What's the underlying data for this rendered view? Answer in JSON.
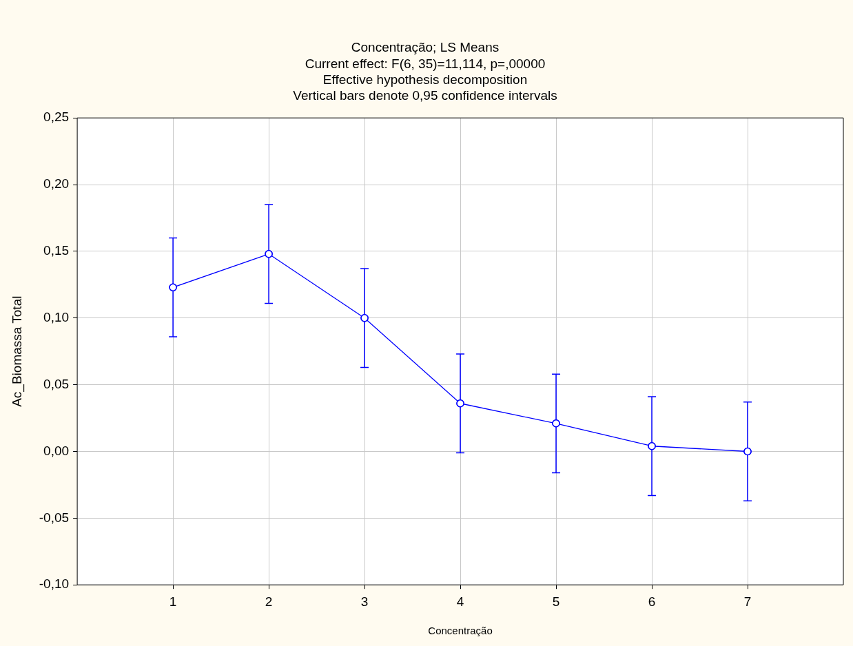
{
  "chart_data": {
    "type": "line",
    "title": "Concentração; LS Means",
    "subtitle": "Current effect: F(6, 35)=11,114, p=,00000\nEffective hypothesis decomposition\nVertical bars denote 0,95 confidence intervals",
    "xlabel": "Concentração",
    "ylabel": "Ac_Biomassa Total",
    "categories": [
      "1",
      "2",
      "3",
      "4",
      "5",
      "6",
      "7"
    ],
    "series": [
      {
        "color": "#0000ff",
        "values": [
          0.123,
          0.148,
          0.1,
          0.036,
          0.021,
          0.004,
          0.0
        ],
        "errors": [
          0.037,
          0.037,
          0.037,
          0.037,
          0.037,
          0.037,
          0.037
        ]
      }
    ],
    "ylim": [
      -0.1,
      0.25
    ],
    "yticks": [
      {
        "value": -0.1,
        "label": "-0,10"
      },
      {
        "value": -0.05,
        "label": "-0,05"
      },
      {
        "value": 0,
        "label": "0,00"
      },
      {
        "value": 0.05,
        "label": "0,05"
      },
      {
        "value": 0.1,
        "label": "0,10"
      },
      {
        "value": 0.15,
        "label": "0,15"
      },
      {
        "value": 0.2,
        "label": "0,20"
      },
      {
        "value": 0.25,
        "label": "0,25"
      }
    ],
    "grid": true,
    "legend": false,
    "marker": "circle",
    "line_style": "solid"
  }
}
